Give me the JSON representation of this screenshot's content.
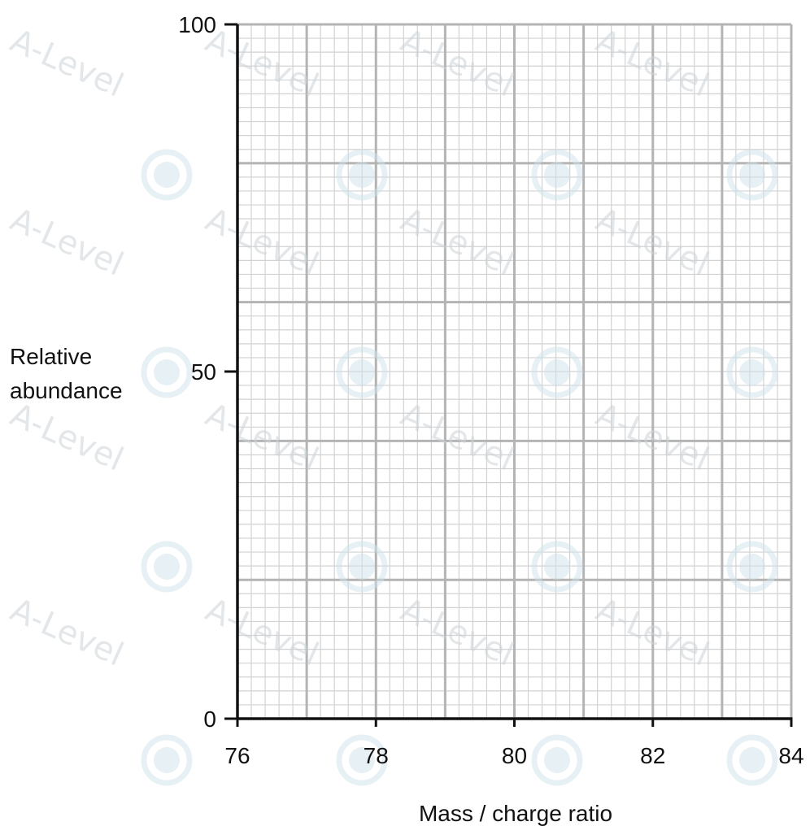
{
  "chart_data": {
    "type": "scatter",
    "title": "",
    "xlabel": "Mass / charge ratio",
    "ylabel": [
      "Relative",
      "abundance"
    ],
    "xlim": [
      76,
      84
    ],
    "ylim": [
      0,
      100
    ],
    "x_ticks": [
      76,
      78,
      80,
      82,
      84
    ],
    "x_tick_labels": [
      "76",
      "78",
      "80",
      "82",
      "84"
    ],
    "y_ticks": [
      0,
      50,
      100
    ],
    "y_tick_labels": [
      "0",
      "50",
      "100"
    ],
    "grid": true,
    "grid_divisions": {
      "x_major": 1,
      "x_minor": 0.2,
      "y_major": 20,
      "y_minor": 2
    },
    "series": [],
    "watermark": "A-Level",
    "colors": {
      "minor_grid": "#d2d2d2",
      "major_grid": "#b4b4b4",
      "axis": "#111111",
      "watermark": "#cfe3ec"
    }
  }
}
